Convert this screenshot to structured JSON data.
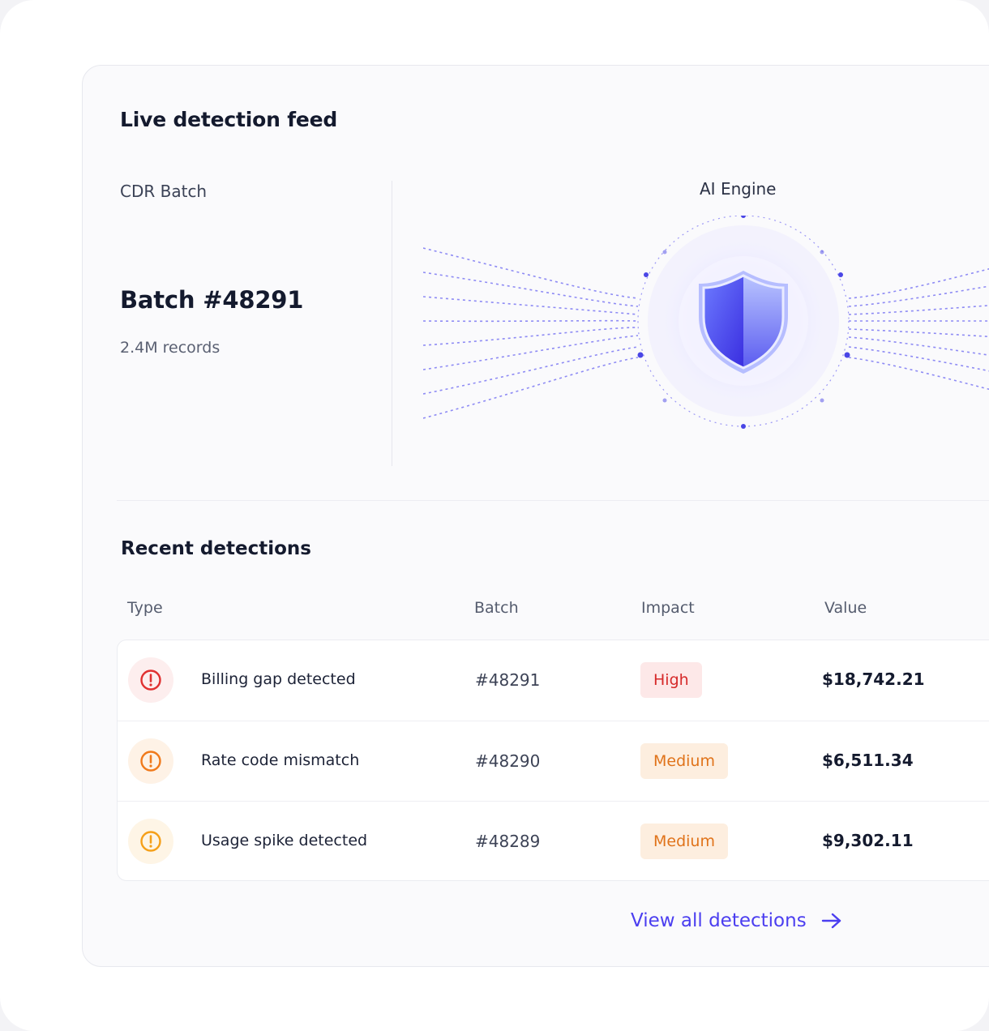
{
  "feed": {
    "title": "Live detection feed",
    "source_label": "CDR Batch",
    "batch_id": "Batch #48291",
    "records": "2.4M records",
    "engine_label": "AI Engine",
    "engine_icon": "shield-icon"
  },
  "recent": {
    "title": "Recent detections",
    "columns": [
      "Type",
      "Batch",
      "Impact",
      "Value"
    ],
    "rows": [
      {
        "type": "Billing gap detected",
        "batch": "#48291",
        "impact": "High",
        "value": "$18,742.21",
        "icon": "alert-circle-icon",
        "icon_color": "#e03131"
      },
      {
        "type": "Rate code mismatch",
        "batch": "#48290",
        "impact": "Medium",
        "value": "$6,511.34",
        "icon": "alert-circle-icon",
        "icon_color": "#f07a1c"
      },
      {
        "type": "Usage spike detected",
        "batch": "#48289",
        "impact": "Medium",
        "value": "$9,302.11",
        "icon": "alert-circle-icon",
        "icon_color": "#f5a01a"
      }
    ],
    "view_all": "View all detections"
  },
  "colors": {
    "accent": "#4b3ef0",
    "high": "#d62a2a",
    "medium": "#e0731a"
  }
}
